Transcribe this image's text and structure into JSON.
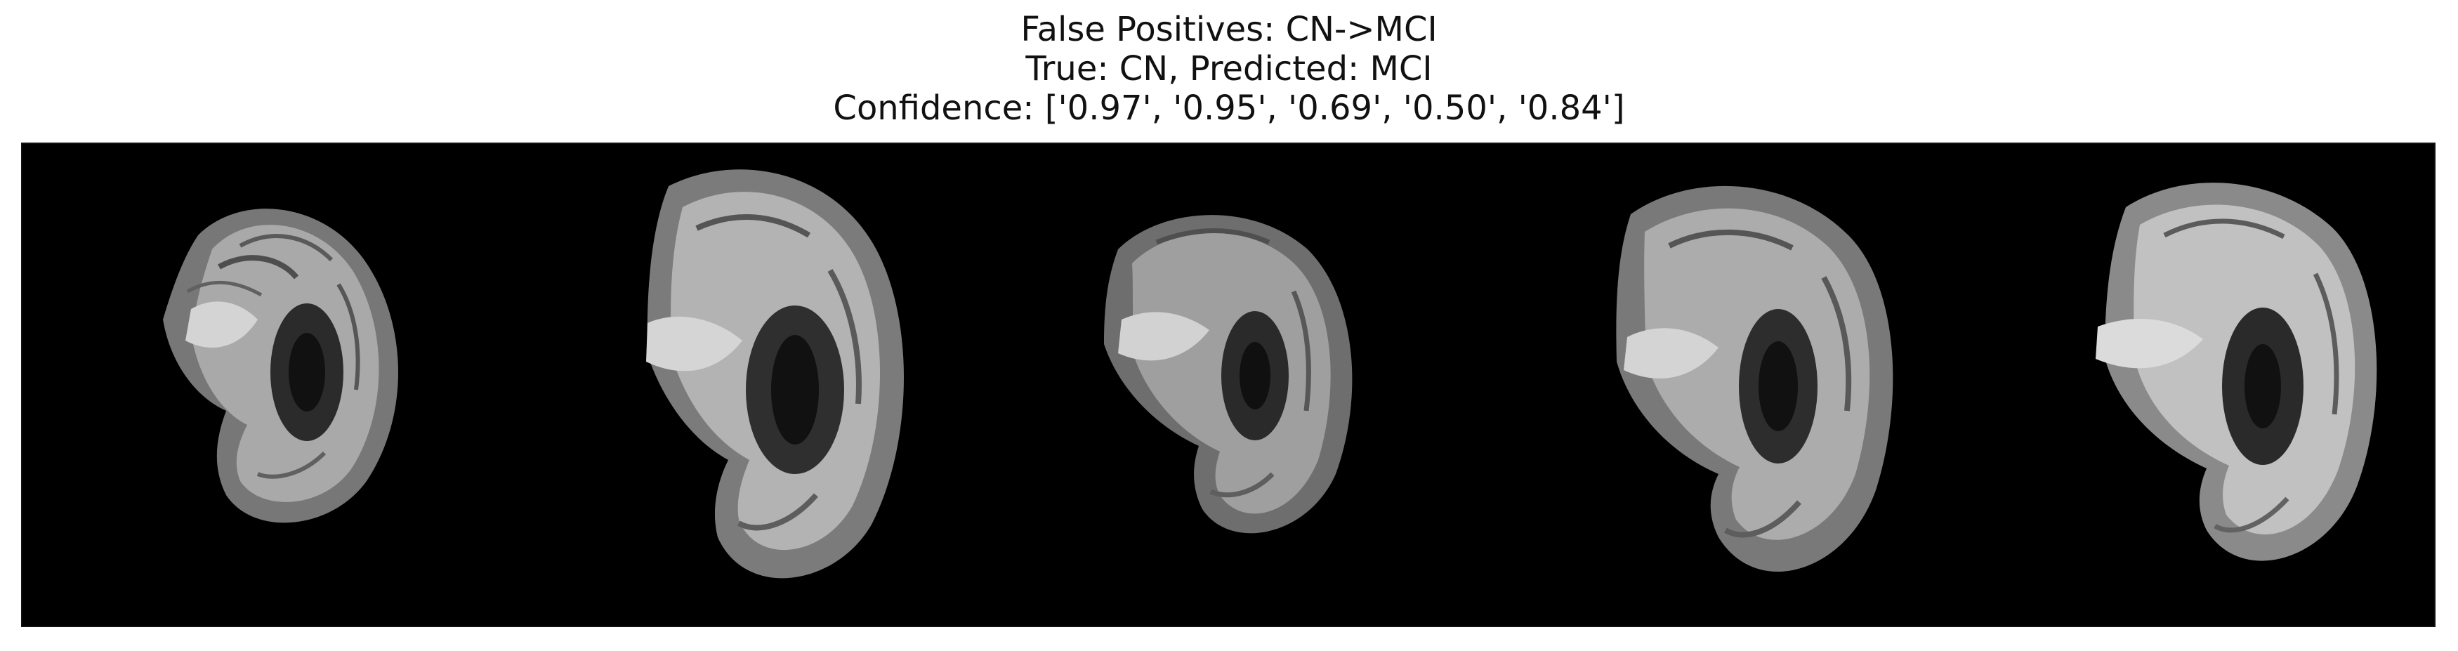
{
  "figure": {
    "title_lines": [
      "False Positives: CN->MCI",
      "True: CN, Predicted: MCI",
      "Confidence: ['0.97', '0.95', '0.69', '0.50', '0.84']"
    ]
  },
  "images": [
    {
      "description": "sagittal-brain-mri-slice"
    },
    {
      "description": "sagittal-brain-mri-slice"
    },
    {
      "description": "sagittal-brain-mri-slice"
    },
    {
      "description": "sagittal-brain-mri-slice"
    },
    {
      "description": "sagittal-brain-mri-slice"
    }
  ],
  "colors": {
    "background": "#000000",
    "tissue_gray": "#8a8a8a",
    "tissue_light": "#c9c9c9",
    "csf_dark": "#2b2b2b"
  }
}
